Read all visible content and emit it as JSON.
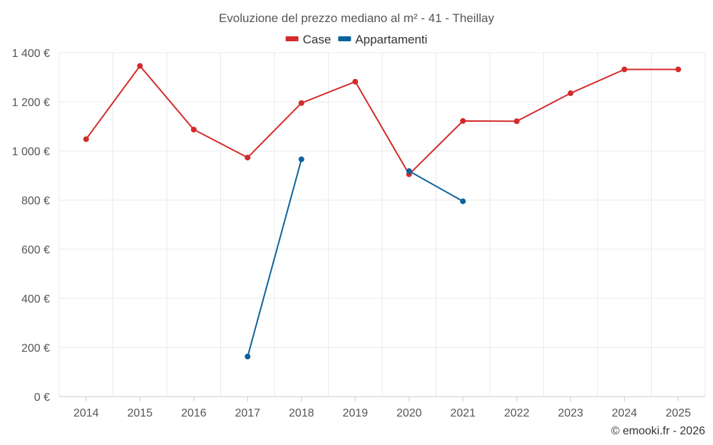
{
  "chart_data": {
    "type": "line",
    "title": "Evoluzione del prezzo mediano al m² - 41 - Theillay",
    "categories": [
      "2014",
      "2015",
      "2016",
      "2017",
      "2018",
      "2019",
      "2020",
      "2021",
      "2022",
      "2023",
      "2024",
      "2025"
    ],
    "ylim": [
      0,
      1400
    ],
    "yticks": [
      0,
      200,
      400,
      600,
      800,
      1000,
      1200,
      1400
    ],
    "ytick_labels": [
      "0 €",
      "200 €",
      "400 €",
      "600 €",
      "800 €",
      "1 000 €",
      "1 200 €",
      "1 400 €"
    ],
    "grid": true,
    "legend_position": "top-center",
    "series": [
      {
        "name": "Case",
        "color": "#d42a2a",
        "values": [
          1048,
          1346,
          1087,
          973,
          1195,
          1282,
          905,
          1122,
          1121,
          1235,
          1332,
          1332
        ]
      },
      {
        "name": "Appartamenti",
        "color": "#0d639c",
        "values": [
          null,
          null,
          null,
          163,
          966,
          null,
          918,
          795,
          null,
          null,
          null,
          null
        ]
      }
    ]
  },
  "credit": "© emooki.fr - 2026"
}
